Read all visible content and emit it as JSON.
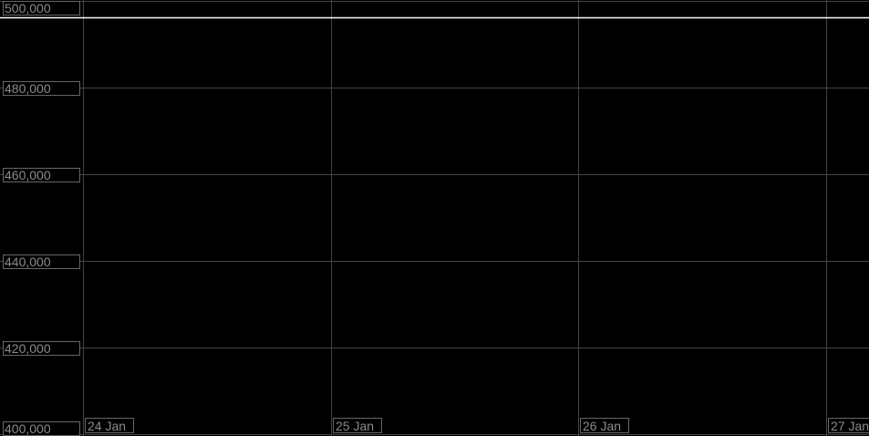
{
  "chart_data": {
    "type": "line",
    "title": "",
    "xlabel": "",
    "ylabel": "",
    "ylim": [
      400000,
      500000
    ],
    "y_ticks": [
      "400,000",
      "420,000",
      "440,000",
      "460,000",
      "480,000",
      "500,000"
    ],
    "y_tick_values": [
      400000,
      420000,
      440000,
      460000,
      480000,
      500000
    ],
    "x_ticks": [
      "24 Jan",
      "25 Jan",
      "26 Jan",
      "27 Jan"
    ],
    "grid": true,
    "series": [
      {
        "values": [
          496100,
          496100,
          496100,
          496100
        ],
        "x": [
          "24 Jan",
          "25 Jan",
          "26 Jan",
          "27 Jan"
        ],
        "color": "#ffffff"
      }
    ],
    "colors": {
      "background": "#000000",
      "grid": "#444444",
      "label_text": "#8a8a8a",
      "line": "#ffffff"
    }
  }
}
